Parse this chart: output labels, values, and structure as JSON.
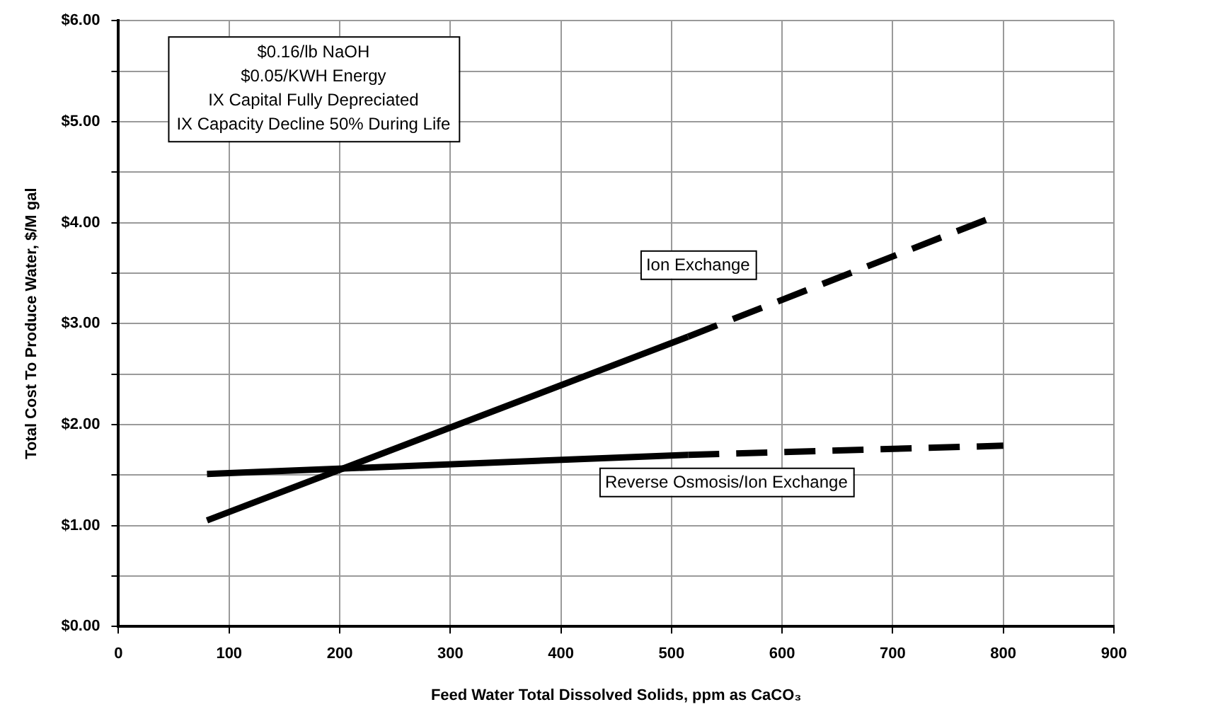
{
  "chart_data": {
    "type": "line",
    "xlabel": "Feed Water Total Dissolved Solids, ppm as CaCO₃",
    "ylabel": "Total Cost To Produce Water, $/M gal",
    "xlim": [
      0,
      900
    ],
    "xticks": [
      0,
      100,
      200,
      300,
      400,
      500,
      600,
      700,
      800,
      900
    ],
    "ylim": [
      0,
      6
    ],
    "yticks": [
      {
        "value": 0,
        "label": "$0.00"
      },
      {
        "value": 0.5,
        "label": null
      },
      {
        "value": 1,
        "label": "$1.00"
      },
      {
        "value": 1.5,
        "label": null
      },
      {
        "value": 2,
        "label": "$2.00"
      },
      {
        "value": 2.5,
        "label": null
      },
      {
        "value": 3,
        "label": "$3.00"
      },
      {
        "value": 3.5,
        "label": null
      },
      {
        "value": 4,
        "label": "$4.00"
      },
      {
        "value": 4.5,
        "label": null
      },
      {
        "value": 5,
        "label": "$5.00"
      },
      {
        "value": 5.5,
        "label": null
      },
      {
        "value": 6,
        "label": "$6.00"
      }
    ],
    "grid": true,
    "legend": false,
    "marker": "none",
    "series": [
      {
        "color": "#000000",
        "line_style": "solid",
        "x": [
          80,
          515
        ],
        "values": [
          1.05,
          2.87
        ]
      },
      {
        "name": "Ion Exchange",
        "color": "#000000",
        "line_style": "dashed",
        "x": [
          515,
          785
        ],
        "values": [
          2.87,
          4.03
        ]
      },
      {
        "color": "#000000",
        "line_style": "solid",
        "x": [
          80,
          515
        ],
        "values": [
          1.51,
          1.7
        ]
      },
      {
        "name": "Reverse Osmosis/Ion Exchange",
        "color": "#000000",
        "line_style": "dashed",
        "x": [
          515,
          800
        ],
        "values": [
          1.7,
          1.79
        ]
      }
    ],
    "annotations": [
      "$0.16/lb NaOH",
      "$0.05/KWH Energy",
      "IX Capital Fully Depreciated",
      "IX Capacity Decline 50% During Life"
    ]
  }
}
